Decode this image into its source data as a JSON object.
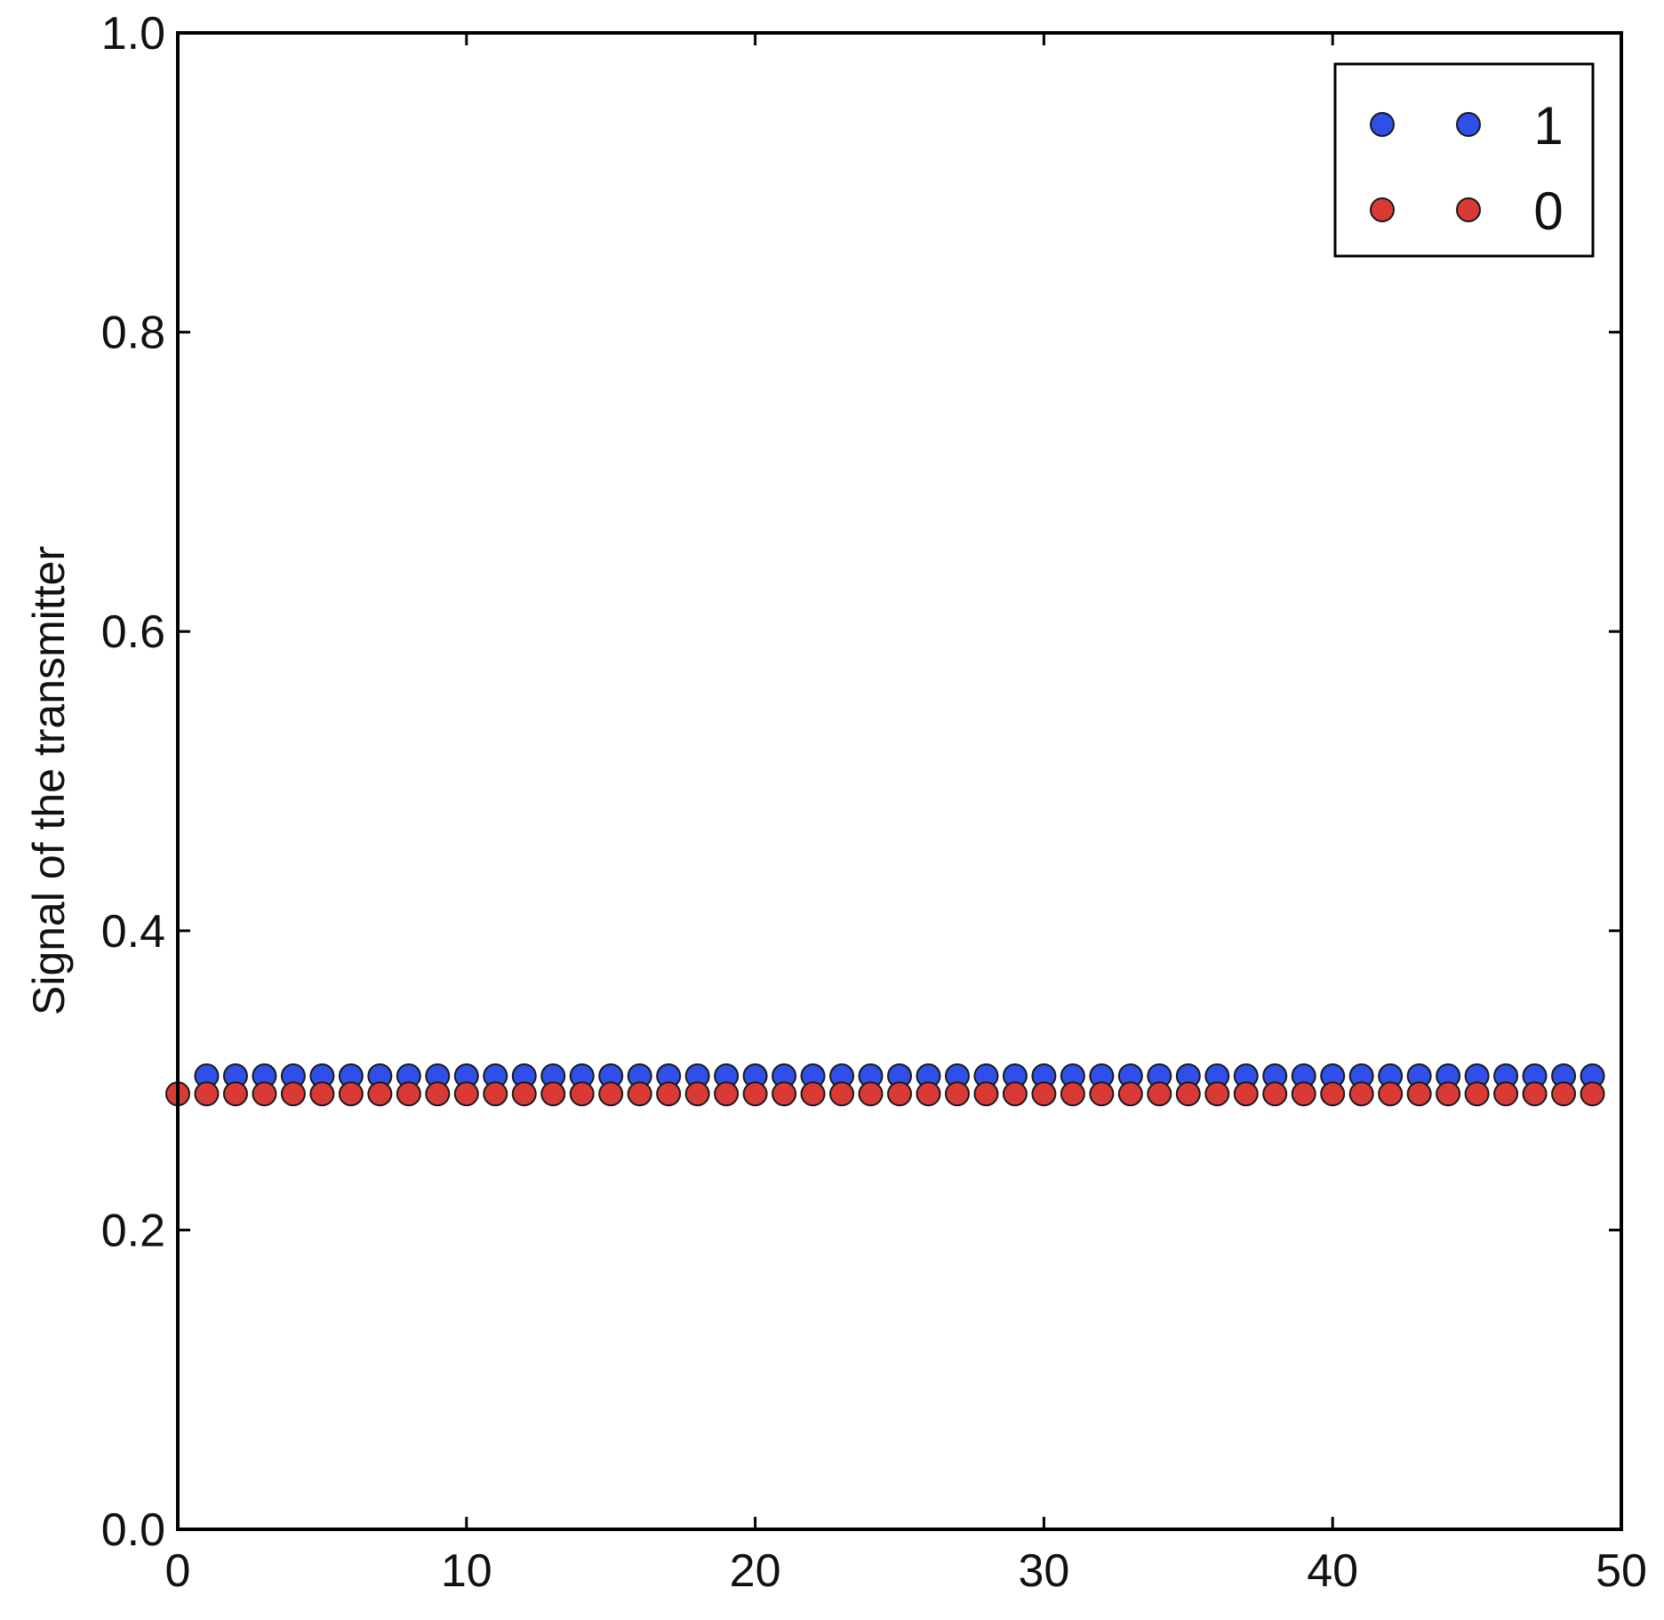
{
  "chart_data": {
    "type": "scatter",
    "title": "",
    "xlabel": "",
    "ylabel": "Signal of the transmitter",
    "xlim": [
      0,
      50
    ],
    "ylim": [
      0,
      1
    ],
    "xticks": [
      "0",
      "10",
      "20",
      "30",
      "40",
      "50"
    ],
    "yticks": [
      "0.0",
      "0.2",
      "0.4",
      "0.6",
      "0.8",
      "1.0"
    ],
    "grid": false,
    "legend_position": "top-right",
    "x": [
      1,
      2,
      3,
      4,
      5,
      6,
      7,
      8,
      9,
      10,
      11,
      12,
      13,
      14,
      15,
      16,
      17,
      18,
      19,
      20,
      21,
      22,
      23,
      24,
      25,
      26,
      27,
      28,
      29,
      30,
      31,
      32,
      33,
      34,
      35,
      36,
      37,
      38,
      39,
      40,
      41,
      42,
      43,
      44,
      45,
      46,
      47,
      48,
      49
    ],
    "series": [
      {
        "name": "1",
        "color": "#2f4fe8",
        "y_constant": 0.303
      },
      {
        "name": "0",
        "color": "#d93a35",
        "y_constant": 0.291,
        "x_start": 0
      }
    ]
  }
}
